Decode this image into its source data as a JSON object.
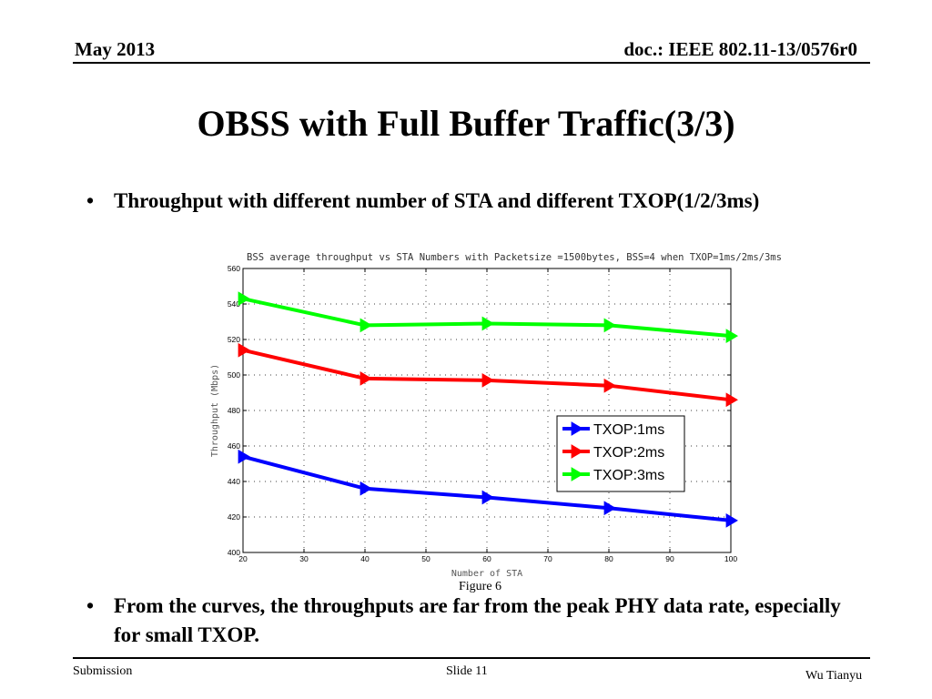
{
  "header": {
    "date": "May 2013",
    "doc_id": "doc.: IEEE 802.11-13/0576r0"
  },
  "slide_title": "OBSS with Full Buffer Traffic(3/3)",
  "bullets": [
    "Throughput with different number of STA and different TXOP(1/2/3ms)",
    "From the curves, the throughputs are far from the peak PHY data rate,  especially for small TXOP."
  ],
  "bullet_glyph": "•",
  "figure_caption": "Figure 6",
  "footer": {
    "left": "Submission",
    "center": "Slide 11",
    "right": "Wu Tianyu"
  },
  "chart_data": {
    "type": "line",
    "title": "BSS average throughput vs STA Numbers with Packetsize =1500bytes, BSS=4 when TXOP=1ms/2ms/3ms",
    "xlabel": "Number of STA",
    "ylabel": "Throughput (Mbps)",
    "xlim": [
      20,
      100
    ],
    "ylim": [
      400,
      560
    ],
    "xticks": [
      20,
      30,
      40,
      50,
      60,
      70,
      80,
      90,
      100
    ],
    "yticks": [
      400,
      420,
      440,
      460,
      480,
      500,
      520,
      540,
      560
    ],
    "grid": true,
    "legend_position": "right-middle",
    "x": [
      20,
      40,
      60,
      80,
      100
    ],
    "series": [
      {
        "name": "TXOP:1ms",
        "color": "#0000ff",
        "values": [
          454,
          436,
          431,
          425,
          418
        ]
      },
      {
        "name": "TXOP:2ms",
        "color": "#ff0000",
        "values": [
          514,
          498,
          497,
          494,
          486
        ]
      },
      {
        "name": "TXOP:3ms",
        "color": "#00ff00",
        "values": [
          543,
          528,
          529,
          528,
          522
        ]
      }
    ]
  }
}
